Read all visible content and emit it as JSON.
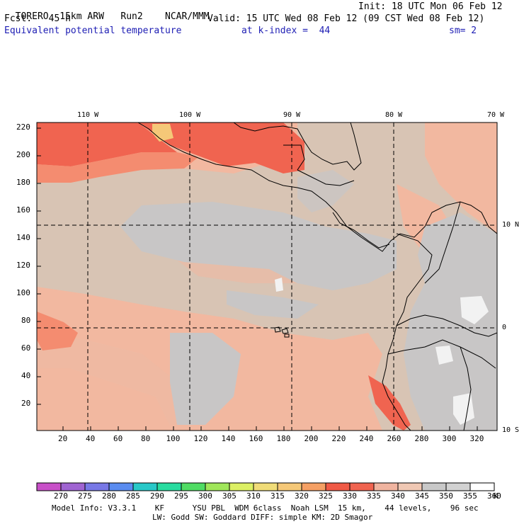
{
  "header": {
    "model": "TORERO",
    "resolution": "15km ARW",
    "run": "Run2",
    "org": "NCAR/MMM",
    "init": "Init: 18 UTC Mon 06 Feb 12",
    "fcst_label": "Fcst.",
    "fcst_hours": "45 h",
    "valid": "Valid: 15 UTC Wed 08 Feb 12 (09 CST Wed 08 Feb 12)",
    "field": "Equivalent potential temperature",
    "level": "at k-index =  44",
    "smoothing": "sm= 2"
  },
  "map": {
    "top_lon_labels": [
      "110 W",
      "100 W",
      "90 W",
      "80 W",
      "70 W"
    ],
    "right_lat_labels": [
      "10 N",
      "0",
      "10 S"
    ],
    "x_ticks": [
      "20",
      "40",
      "60",
      "80",
      "100",
      "120",
      "140",
      "160",
      "180",
      "200",
      "220",
      "240",
      "260",
      "280",
      "300",
      "320"
    ],
    "y_ticks": [
      "220",
      "200",
      "180",
      "160",
      "140",
      "120",
      "100",
      "80",
      "60",
      "40",
      "20"
    ]
  },
  "colorbar": {
    "labels": [
      "270",
      "275",
      "280",
      "285",
      "290",
      "295",
      "300",
      "305",
      "310",
      "315",
      "320",
      "325",
      "330",
      "335",
      "340",
      "345",
      "350",
      "355",
      "360"
    ],
    "unit": "K",
    "colors": [
      "#c850c8",
      "#a064d2",
      "#7878e6",
      "#5a8cf0",
      "#28c8c8",
      "#28dca0",
      "#50dc64",
      "#a0e65a",
      "#dcf064",
      "#f0dc78",
      "#f5c878",
      "#f5a064",
      "#f05a46",
      "#f06450",
      "#f0b4a0",
      "#f0c8b4",
      "#c8c8c8",
      "#d2d2d2",
      "#ffffff"
    ]
  },
  "footer": {
    "line1": "Model Info: V3.3.1    KF      YSU PBL  WDM 6class  Noah LSM  15 km,    44 levels,    96 sec",
    "line2": "LW: Godd SW: Goddard DIFF: simple KM: 2D Smagor"
  }
}
